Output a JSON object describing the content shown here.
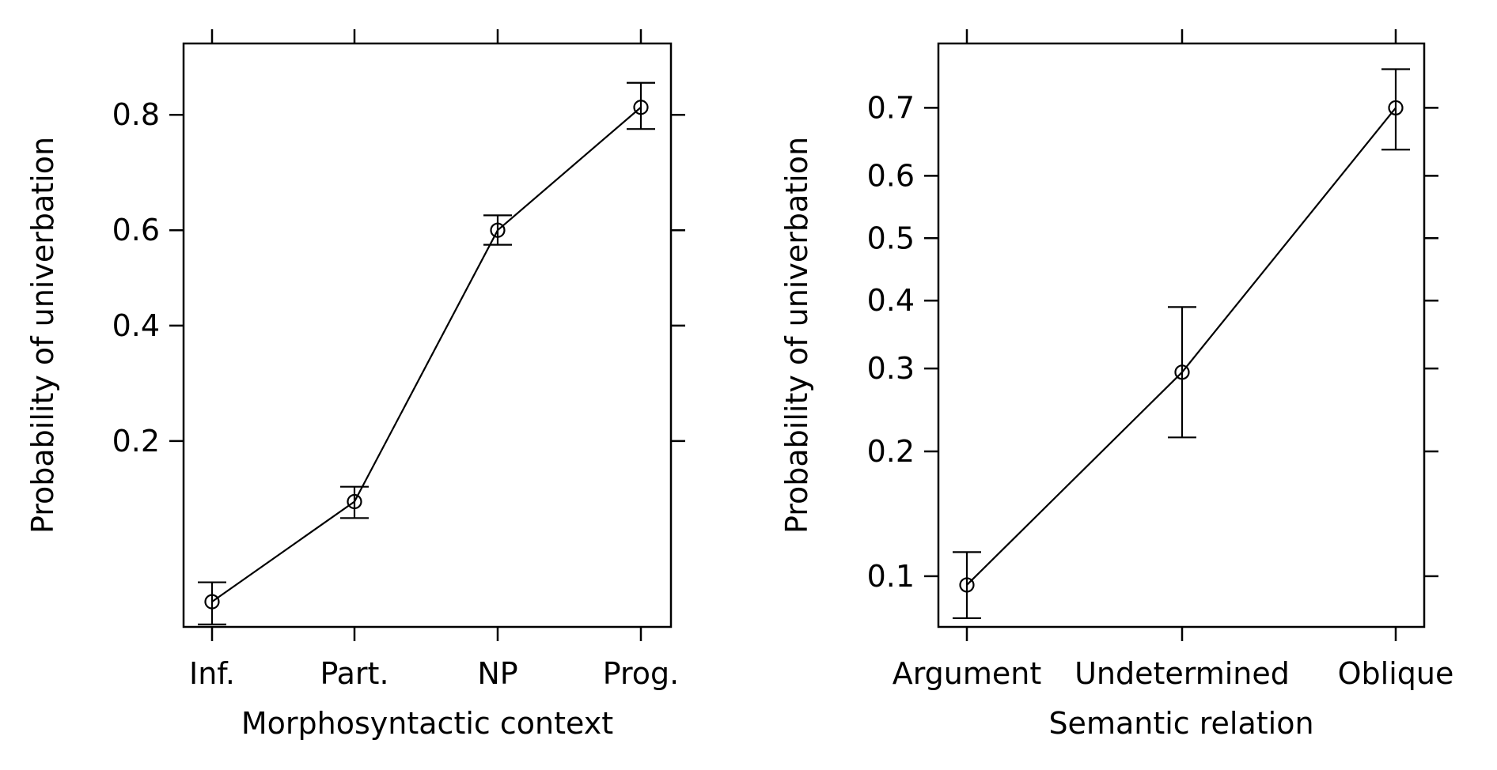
{
  "chart_data": [
    {
      "type": "line",
      "xlabel": "Morphosyntactic context",
      "ylabel": "Probability of univerbation",
      "categories": [
        "Inf.",
        "Part.",
        "NP",
        "Prog."
      ],
      "values": [
        0.06,
        0.13,
        0.6,
        0.81
      ],
      "ci_lower": [
        0.05,
        0.115,
        0.57,
        0.78
      ],
      "ci_upper": [
        0.07,
        0.145,
        0.63,
        0.84
      ],
      "y_ticks": [
        0.2,
        0.4,
        0.6,
        0.8
      ],
      "y_tick_labels": [
        "0.2",
        "0.4",
        "0.6",
        "0.8"
      ],
      "y_scale": "logit",
      "ylim": [
        0.049,
        0.88
      ],
      "error_bars": true,
      "markers": "open-circle",
      "grid": false
    },
    {
      "type": "line",
      "xlabel": "Semantic relation",
      "ylabel": "Probability of univerbation",
      "categories": [
        "Argument",
        "Undetermined",
        "Oblique"
      ],
      "values": [
        0.095,
        0.295,
        0.7
      ],
      "ci_lower": [
        0.078,
        0.215,
        0.64
      ],
      "ci_upper": [
        0.115,
        0.39,
        0.75
      ],
      "y_ticks": [
        0.1,
        0.2,
        0.3,
        0.4,
        0.5,
        0.6,
        0.7
      ],
      "y_tick_labels": [
        "0.1",
        "0.2",
        "0.3",
        "0.4",
        "0.5",
        "0.6",
        "0.7"
      ],
      "y_scale": "logit",
      "ylim": [
        0.074,
        0.78
      ],
      "error_bars": true,
      "markers": "open-circle",
      "grid": false
    }
  ]
}
